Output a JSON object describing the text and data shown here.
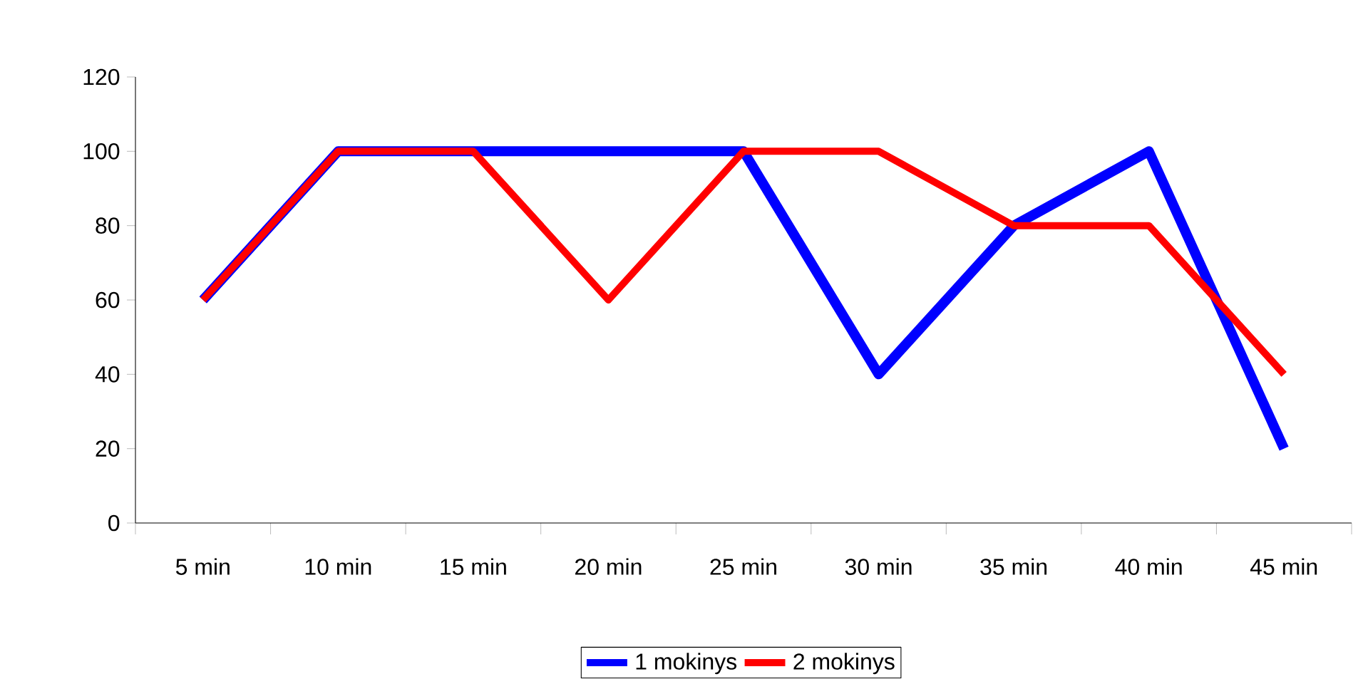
{
  "chart_data": {
    "type": "line",
    "categories": [
      "5 min",
      "10 min",
      "15 min",
      "20 min",
      "25 min",
      "30 min",
      "35 min",
      "40 min",
      "45 min"
    ],
    "series": [
      {
        "name": "1 mokinys",
        "color": "#0000ff",
        "values": [
          60,
          100,
          100,
          100,
          100,
          40,
          80,
          100,
          20
        ]
      },
      {
        "name": "2 mokinys",
        "color": "#ff0000",
        "values": [
          60,
          100,
          100,
          60,
          100,
          100,
          80,
          80,
          40
        ]
      }
    ],
    "ylim": [
      0,
      120
    ],
    "yticks": [
      0,
      20,
      40,
      60,
      80,
      100,
      120
    ],
    "grid": false,
    "legend": "bottom",
    "marker": "none",
    "line_style": "solid"
  }
}
